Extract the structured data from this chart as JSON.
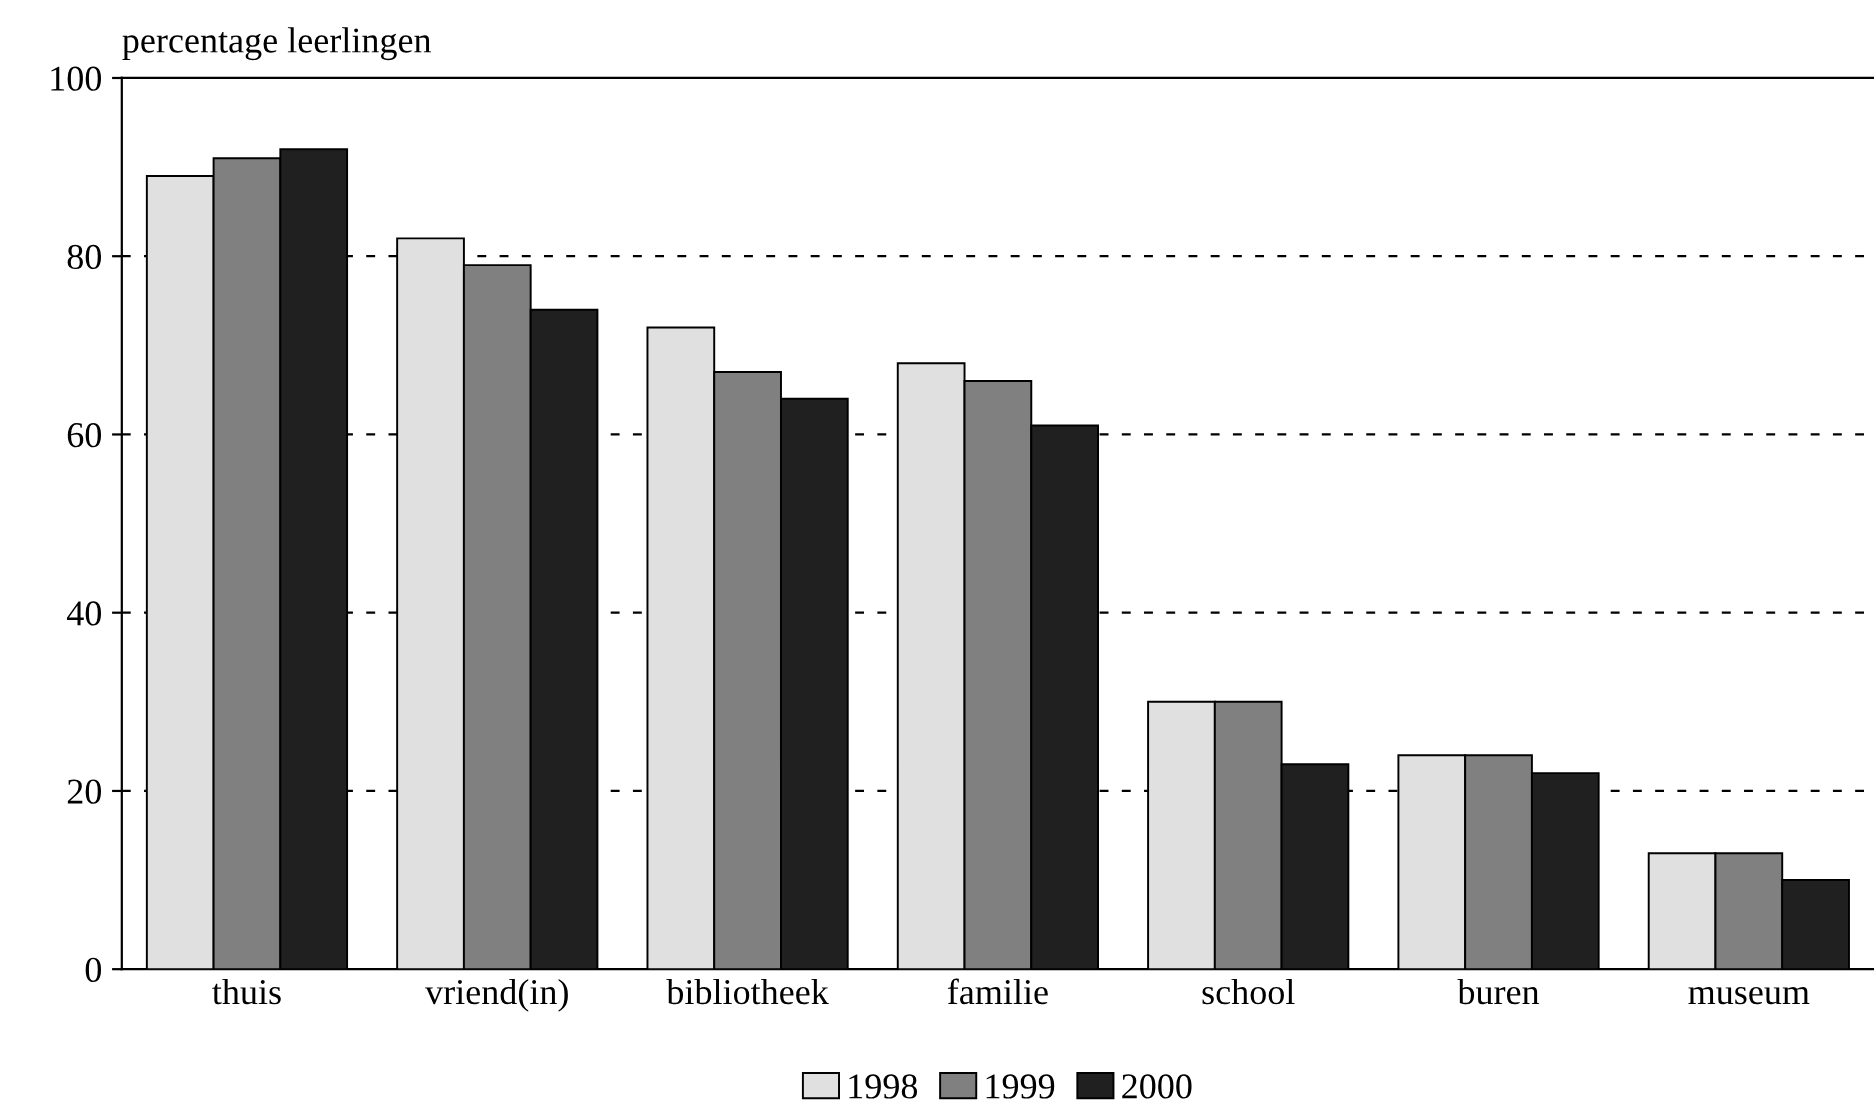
{
  "chart_data": {
    "type": "bar",
    "ylabel": "percentage leerlingen",
    "categories": [
      "thuis",
      "vriend(in)",
      "bibliotheek",
      "familie",
      "school",
      "buren",
      "museum"
    ],
    "series": [
      {
        "name": "1998",
        "color": "#e0e0e0",
        "values": [
          89,
          82,
          72,
          68,
          30,
          24,
          13
        ]
      },
      {
        "name": "1999",
        "color": "#808080",
        "values": [
          91,
          79,
          67,
          66,
          30,
          24,
          13
        ]
      },
      {
        "name": "2000",
        "color": "#202020",
        "values": [
          92,
          74,
          64,
          61,
          23,
          22,
          10
        ]
      }
    ],
    "ylim": [
      0,
      100
    ],
    "yticks": [
      0,
      20,
      40,
      60,
      80,
      100
    ],
    "grid": "y",
    "legend": "bottom"
  }
}
